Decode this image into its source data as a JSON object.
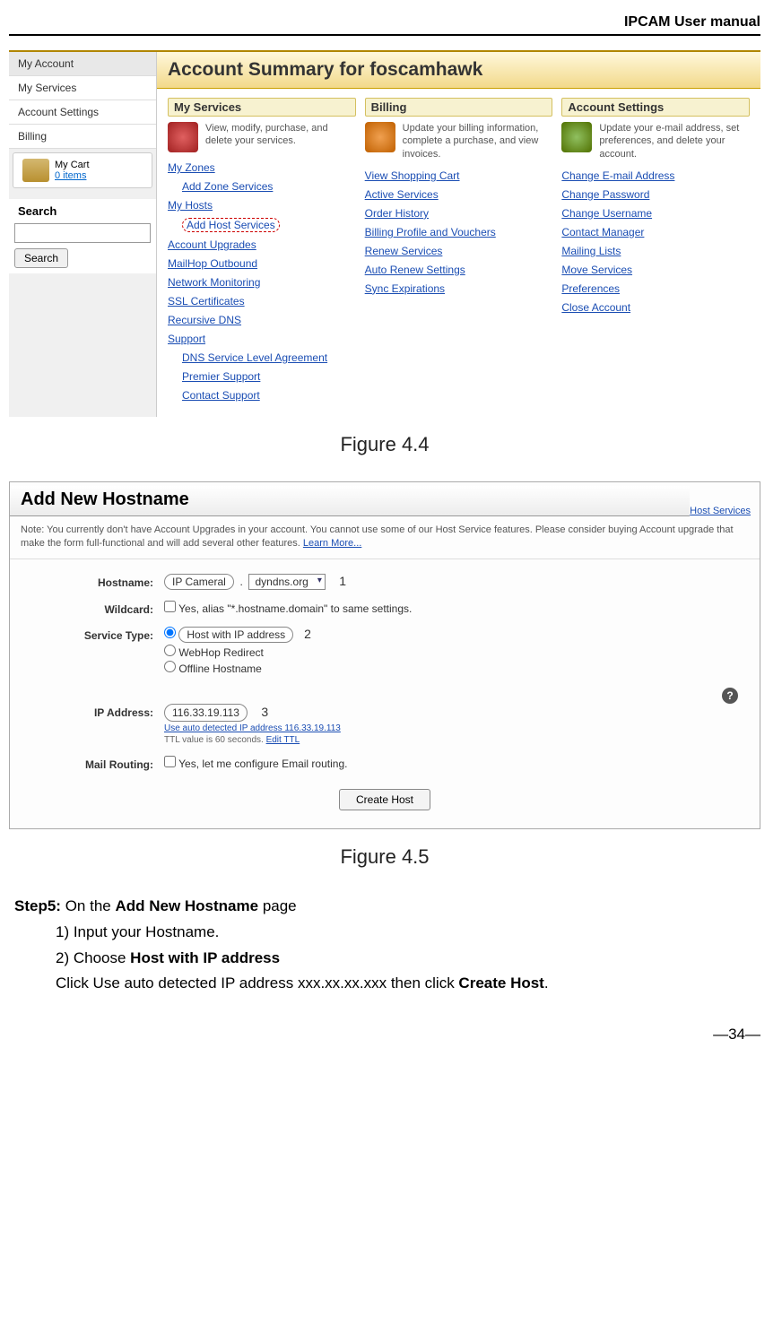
{
  "doc": {
    "header": "IPCAM User manual",
    "page_number": "—34—"
  },
  "fig44": {
    "caption": "Figure 4.4",
    "summary_title": "Account Summary for foscamhawk",
    "sidebar": {
      "items": [
        "My Account",
        "My Services",
        "Account Settings",
        "Billing"
      ],
      "cart_label": "My Cart",
      "cart_items": "0 items",
      "search_title": "Search",
      "search_button": "Search"
    },
    "cols": [
      {
        "head": "My Services",
        "desc": "View, modify, purchase, and delete your services.",
        "links": [
          {
            "text": "My Zones",
            "indent": false
          },
          {
            "text": "Add Zone Services",
            "indent": true
          },
          {
            "text": "My Hosts",
            "indent": false
          },
          {
            "text": "Add Host Services",
            "indent": true,
            "highlight": true
          },
          {
            "text": "Account Upgrades",
            "indent": false
          },
          {
            "text": "MailHop Outbound",
            "indent": false
          },
          {
            "text": "Network Monitoring",
            "indent": false
          },
          {
            "text": "SSL Certificates",
            "indent": false
          },
          {
            "text": "Recursive DNS",
            "indent": false
          },
          {
            "text": "Support",
            "indent": false
          },
          {
            "text": "DNS Service Level Agreement",
            "indent": true
          },
          {
            "text": "Premier Support",
            "indent": true
          },
          {
            "text": "Contact Support",
            "indent": true
          }
        ]
      },
      {
        "head": "Billing",
        "desc": "Update your billing information, complete a purchase, and view invoices.",
        "links": [
          {
            "text": "View Shopping Cart",
            "indent": false
          },
          {
            "text": "Active Services",
            "indent": false
          },
          {
            "text": "Order History",
            "indent": false
          },
          {
            "text": "Billing Profile and Vouchers",
            "indent": false
          },
          {
            "text": "Renew Services",
            "indent": false
          },
          {
            "text": "Auto Renew Settings",
            "indent": false
          },
          {
            "text": "Sync Expirations",
            "indent": false
          }
        ]
      },
      {
        "head": "Account Settings",
        "desc": "Update your e-mail address, set preferences, and delete your account.",
        "links": [
          {
            "text": "Change E-mail Address",
            "indent": false
          },
          {
            "text": "Change Password",
            "indent": false
          },
          {
            "text": "Change Username",
            "indent": false
          },
          {
            "text": "Contact Manager",
            "indent": false
          },
          {
            "text": "Mailing Lists",
            "indent": false
          },
          {
            "text": "Move Services",
            "indent": false
          },
          {
            "text": "Preferences",
            "indent": false
          },
          {
            "text": "Close Account",
            "indent": false
          }
        ]
      }
    ]
  },
  "fig45": {
    "caption": "Figure 4.5",
    "host_services_link": "Host Services",
    "header": "Add New Hostname",
    "note_pre": "Note: You currently don't have Account Upgrades in your account. You cannot use some of our Host Service features. Please consider buying Account upgrade that make the form full-functional and will add several other features. ",
    "note_link": "Learn More...",
    "labels": {
      "hostname": "Hostname:",
      "wildcard": "Wildcard:",
      "service_type": "Service Type:",
      "ip_address": "IP Address:",
      "mail_routing": "Mail Routing:"
    },
    "values": {
      "hostname_value": "IP Cameral",
      "domain": "dyndns.org",
      "wildcard_text": "Yes, alias \"*.hostname.domain\" to same settings.",
      "service_host": "Host with IP address",
      "service_webhop": "WebHop Redirect",
      "service_offline": "Offline Hostname",
      "ip_value": "116.33.19.113",
      "ip_auto": "Use auto detected IP address 116.33.19.113",
      "ttl": "TTL value is 60 seconds. ",
      "ttl_link": "Edit TTL",
      "mail_text": "Yes, let me configure Email routing.",
      "create_button": "Create Host"
    },
    "steps": {
      "s1": "1",
      "s2": "2",
      "s3": "3"
    }
  },
  "instructions": {
    "step5_label": "Step5:",
    "step5_rest": " On the ",
    "step5_bold": "Add New Hostname",
    "step5_tail": " page",
    "i1": "1)   Input your Hostname.",
    "i2_pre": "2)   Choose ",
    "i2_bold": "Host with IP address",
    "click_pre": "Click Use auto detected IP address xxx.xx.xx.xxx then click ",
    "click_bold": "Create Host",
    "click_tail": "."
  }
}
